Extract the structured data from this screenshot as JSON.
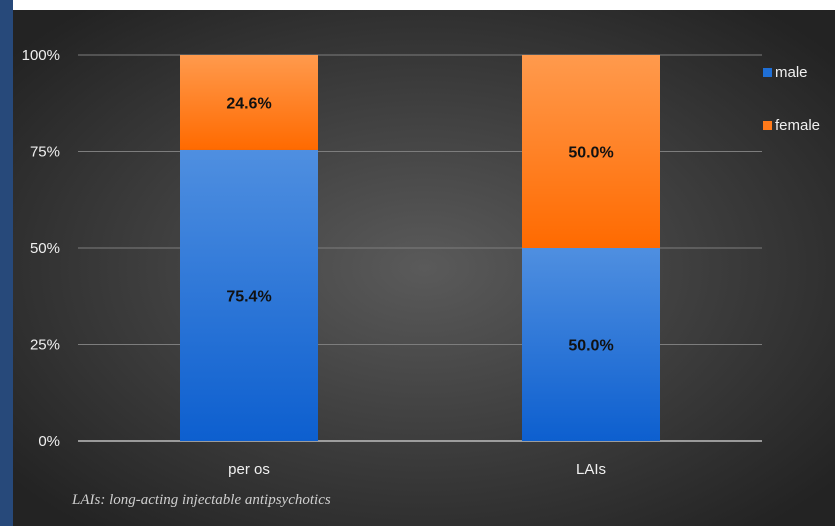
{
  "chart_data": {
    "type": "bar",
    "stacked": true,
    "normalized_percent": true,
    "categories": [
      "per os",
      "LAIs"
    ],
    "series": [
      {
        "name": "male",
        "values": [
          75.4,
          50.0
        ],
        "labels": [
          "75.4%",
          "50.0%"
        ],
        "color": "#1f6fd6"
      },
      {
        "name": "female",
        "values": [
          24.6,
          50.0
        ],
        "labels": [
          "24.6%",
          "50.0%"
        ],
        "color": "#ff7a1a"
      }
    ],
    "yticks": [
      "0%",
      "25%",
      "50%",
      "75%",
      "100%"
    ],
    "ylim": [
      0,
      100
    ],
    "grid": true,
    "legend": "top-right",
    "title": "",
    "xlabel": "",
    "ylabel": "",
    "footnote": "LAIs: long-acting injectable antipsychotics"
  },
  "colors": {
    "background_center": "#5a5a5a",
    "background_edge": "#232323",
    "left_border": "#27497a"
  }
}
